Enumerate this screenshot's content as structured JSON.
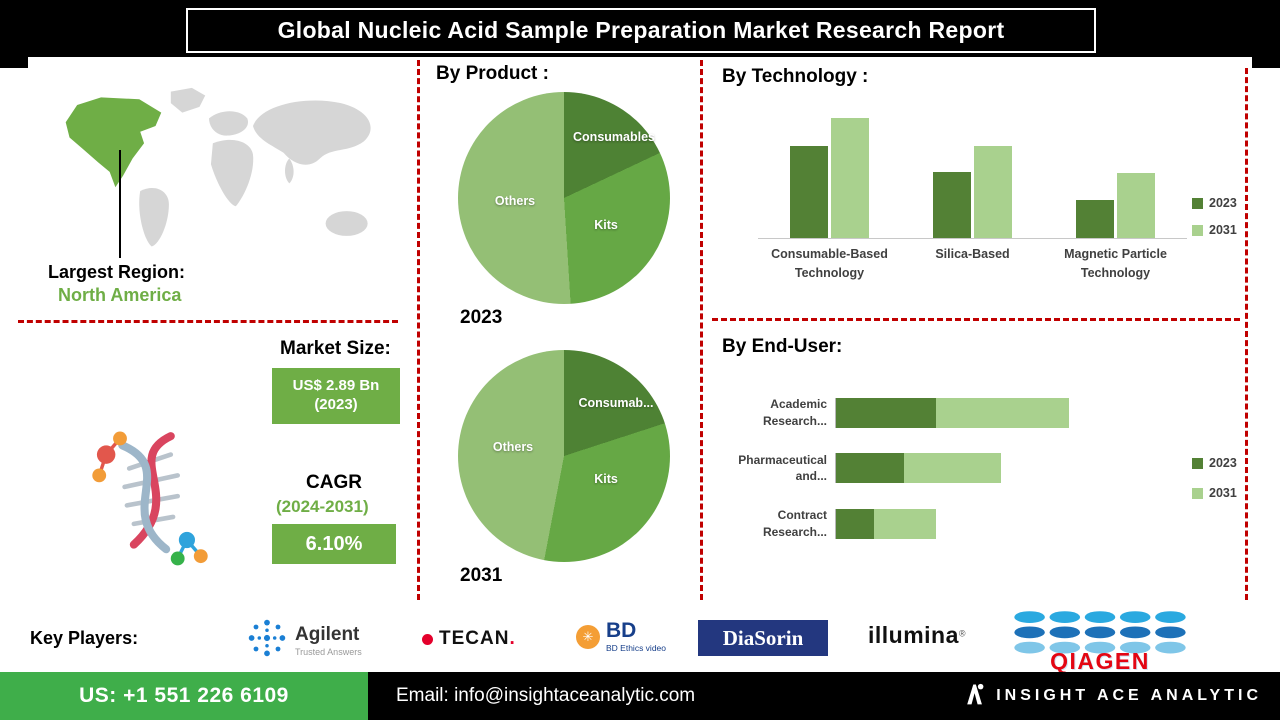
{
  "title": "Global Nucleic Acid Sample Preparation Market Research Report",
  "largest_region": {
    "label": "Largest Region:",
    "value": "North America"
  },
  "market_size": {
    "label": "Market Size:",
    "value": "US$ 2.89 Bn (2023)"
  },
  "cagr": {
    "label": "CAGR",
    "period": "(2024-2031)",
    "value": "6.10%"
  },
  "sections": {
    "product": "By Product :",
    "technology": "By  Technology :",
    "end_user": "By End-User:"
  },
  "key_players": {
    "label": "Key Players:",
    "agilent": {
      "name": "Agilent",
      "tagline": "Trusted Answers"
    },
    "tecan": {
      "name": "TECAN",
      "period": "."
    },
    "bd": {
      "name": "BD",
      "caption": "BD Ethics video"
    },
    "diasorin": {
      "name": "DiaSorin"
    },
    "illumina": {
      "name": "illumina",
      "reg": "®"
    },
    "qiagen": {
      "name": "QIAGEN"
    }
  },
  "footer": {
    "phone": "US: +1 551 226 6109",
    "email": "Email: info@insightaceanalytic.com",
    "brand": "INSIGHT ACE ANALYTIC"
  },
  "palette": {
    "dark_green": "#538135",
    "mid_green": "#6fae46",
    "light_green": "#a9d18e",
    "pie_light_green": "#94bf75",
    "dashed_red": "#c00000",
    "footer_green": "#3fae4a",
    "banner_black": "#000000",
    "diasorin_blue": "#23377f",
    "bd_blue": "#173f8a",
    "bd_orange": "#f49e35",
    "tecan_red": "#e4002b",
    "agilent_blue": "#1a7fd4",
    "qiagen_red": "#e30613",
    "qiagen_blue": "#1d71b8"
  },
  "chart_data": [
    {
      "type": "pie",
      "title": "2023",
      "labels": [
        "Consumables",
        "Kits",
        "Others"
      ],
      "values": [
        18,
        31,
        51
      ],
      "colors": [
        "#4e8234",
        "#66a845",
        "#94bf75"
      ],
      "note": "shares in % estimated from slice angles; no numeric labels shown"
    },
    {
      "type": "pie",
      "title": "2031",
      "labels": [
        "Consumab...",
        "Kits",
        "Others"
      ],
      "values": [
        20,
        33,
        47
      ],
      "colors": [
        "#4e8234",
        "#66a845",
        "#94bf75"
      ],
      "note": "shares in % estimated from slice angles; no numeric labels shown"
    },
    {
      "type": "bar",
      "title": "By Technology",
      "categories": [
        "Consumable-Based Technology",
        "Silica-Based",
        "Magnetic Particle Technology"
      ],
      "series": [
        {
          "name": "2023",
          "color": "#538135",
          "values": [
            77,
            55,
            32
          ]
        },
        {
          "name": "2031",
          "color": "#a9d18e",
          "values": [
            100,
            77,
            54
          ]
        }
      ],
      "ylim": [
        0,
        100
      ],
      "legend_position": "right",
      "note": "relative units; y-axis unlabeled in source"
    },
    {
      "type": "bar",
      "orientation": "horizontal",
      "title": "By End-User",
      "categories": [
        "Academic Research...",
        "Pharmaceutical and...",
        "Contract Research..."
      ],
      "series": [
        {
          "name": "2023",
          "color": "#538135",
          "values": [
            100,
            68,
            38
          ]
        },
        {
          "name": "2031",
          "color": "#a9d18e",
          "values": [
            133,
            97,
            62
          ]
        }
      ],
      "legend_position": "right",
      "note": "relative units; x-axis unlabeled in source; 2031 segment stacked after 2023"
    }
  ]
}
